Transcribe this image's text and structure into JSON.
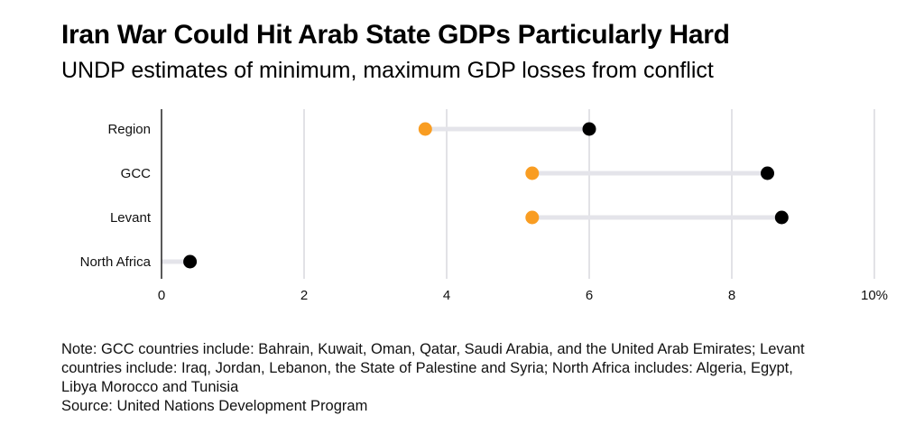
{
  "header": {
    "title": "Iran War Could Hit Arab State GDPs Particularly Hard",
    "subtitle": "UNDP estimates of minimum, maximum GDP losses from conflict"
  },
  "chart_data": {
    "type": "dumbbell",
    "title": "Iran War Could Hit Arab State GDPs Particularly Hard",
    "subtitle": "UNDP estimates of minimum, maximum GDP losses from conflict",
    "xlabel": "",
    "ylabel": "",
    "xlim": [
      0,
      10
    ],
    "x_ticks": [
      0,
      2,
      4,
      6,
      8,
      10
    ],
    "x_tick_labels": [
      "0",
      "2",
      "4",
      "6",
      "8",
      "10%"
    ],
    "grid": true,
    "categories": [
      "Region",
      "GCC",
      "Levant",
      "North Africa"
    ],
    "series": [
      {
        "name": "Minimum",
        "color": "#f99d22",
        "values": [
          3.7,
          5.2,
          5.2,
          0.0
        ]
      },
      {
        "name": "Maximum",
        "color": "#000000",
        "values": [
          6.0,
          8.5,
          8.7,
          0.4
        ]
      }
    ],
    "connector_color": "#e4e4ea",
    "gridline_color": "#d9d9dd"
  },
  "footer": {
    "note_lines": [
      "Note: GCC countries include: Bahrain, Kuwait, Oman, Qatar, Saudi Arabia, and the United Arab Emirates; Levant",
      "countries include: Iraq, Jordan, Lebanon, the State of Palestine and Syria; North Africa includes: Algeria, Egypt,",
      "Libya Morocco and Tunisia"
    ],
    "source": "Source: United Nations Development Program"
  }
}
